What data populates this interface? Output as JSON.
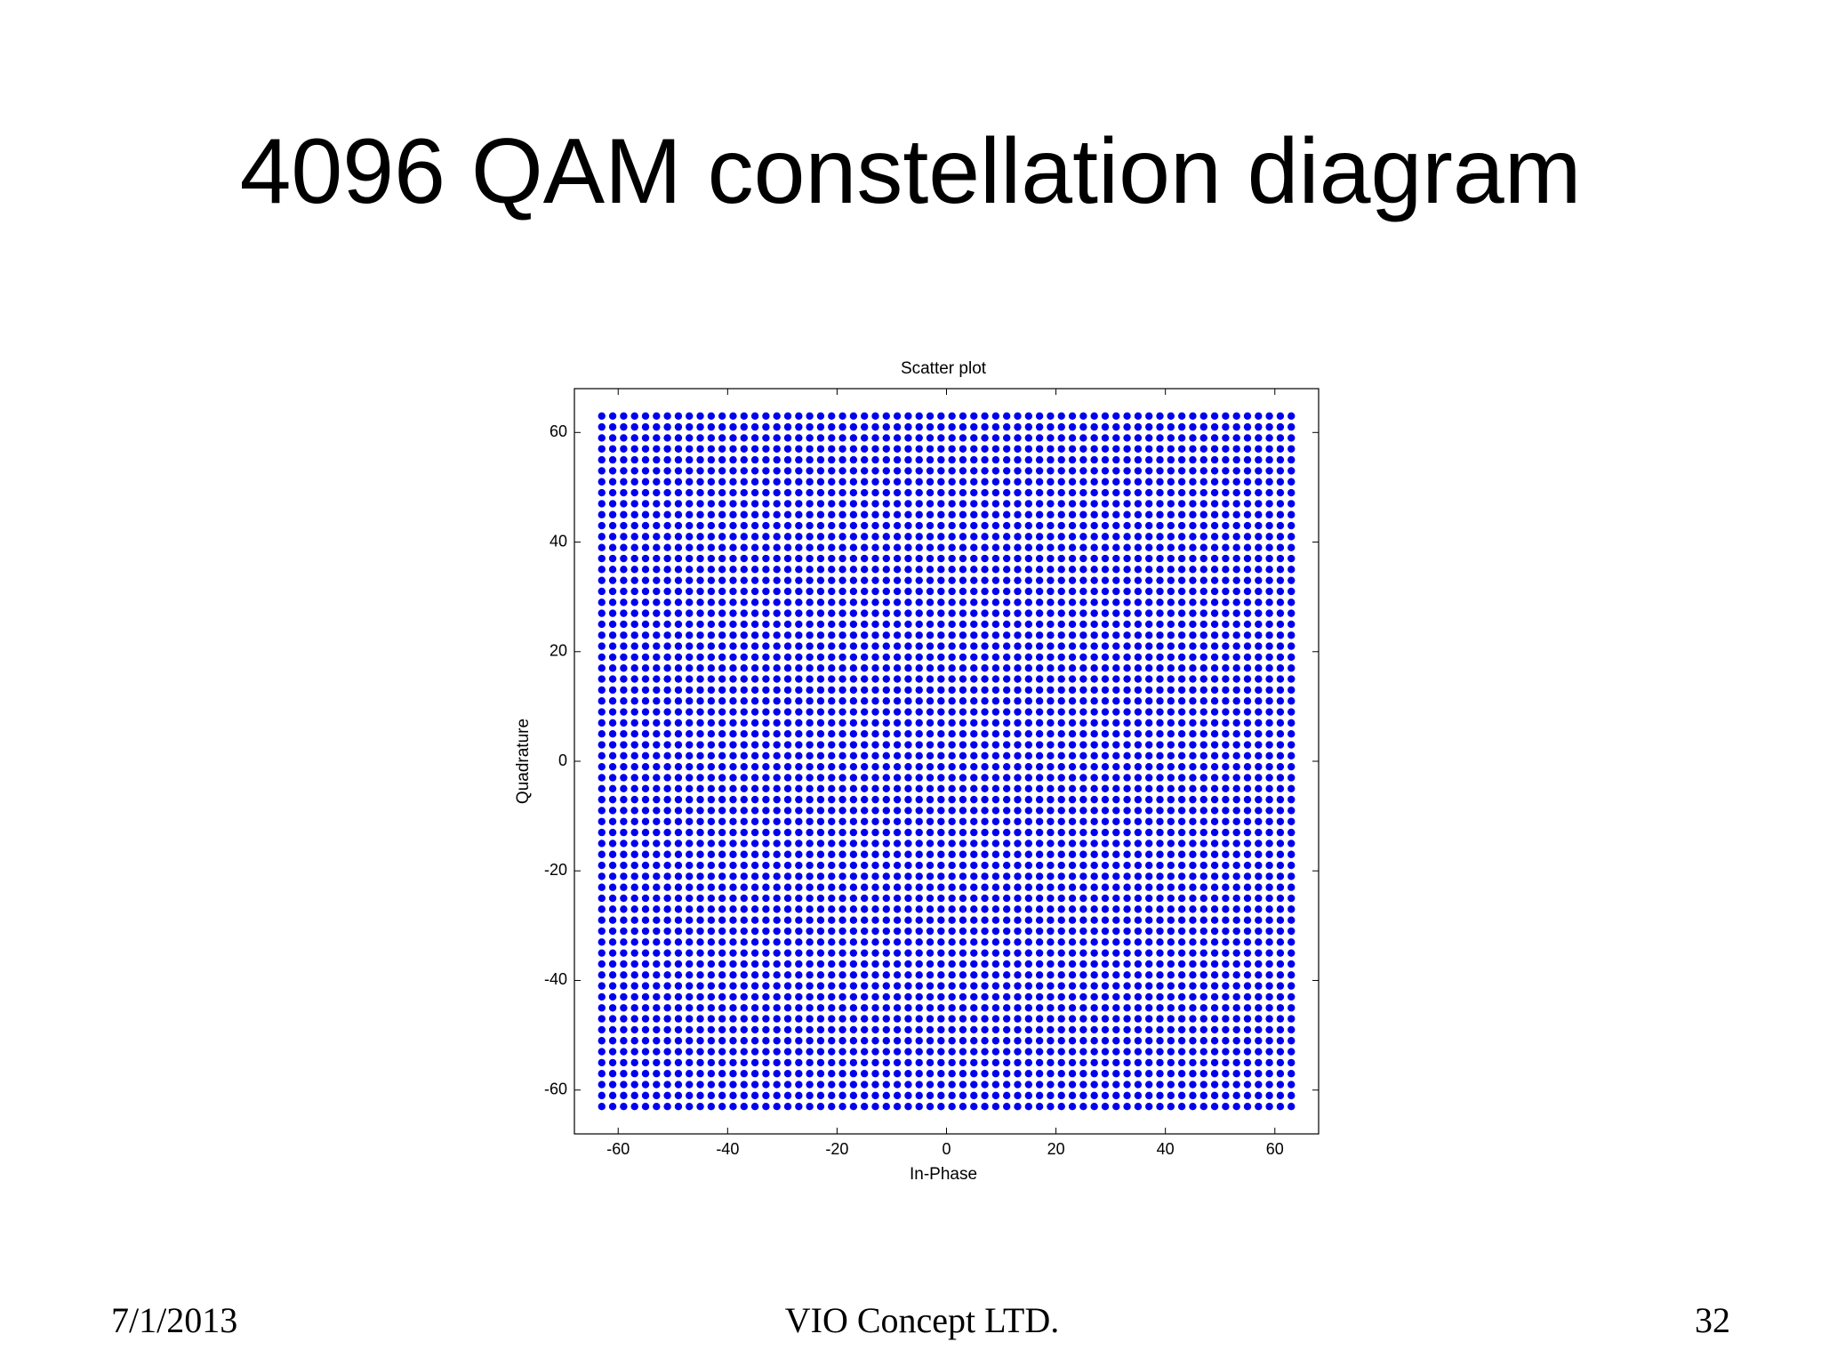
{
  "slide": {
    "title": "4096 QAM constellation diagram",
    "footer": {
      "date": "7/1/2013",
      "company": "VIO Concept LTD.",
      "page": "32"
    }
  },
  "chart_data": {
    "type": "scatter",
    "title": "Scatter plot",
    "x_label": "In-Phase",
    "y_label": "Quadrature",
    "color": "#0000ee",
    "grid": false,
    "x": [
      -63,
      -61,
      -59,
      -57,
      -55,
      -53,
      -51,
      -49,
      -47,
      -45,
      -43,
      -41,
      -39,
      -37,
      -35,
      -33,
      -31,
      -29,
      -27,
      -25,
      -23,
      -21,
      -19,
      -17,
      -15,
      -13,
      -11,
      -9,
      -7,
      -5,
      -3,
      -1,
      1,
      3,
      5,
      7,
      9,
      11,
      13,
      15,
      17,
      19,
      21,
      23,
      25,
      27,
      29,
      31,
      33,
      35,
      37,
      39,
      41,
      43,
      45,
      47,
      49,
      51,
      53,
      55,
      57,
      59,
      61,
      63
    ],
    "y": [
      -63,
      -61,
      -59,
      -57,
      -55,
      -53,
      -51,
      -49,
      -47,
      -45,
      -43,
      -41,
      -39,
      -37,
      -35,
      -33,
      -31,
      -29,
      -27,
      -25,
      -23,
      -21,
      -19,
      -17,
      -15,
      -13,
      -11,
      -9,
      -7,
      -5,
      -3,
      -1,
      1,
      3,
      5,
      7,
      9,
      11,
      13,
      15,
      17,
      19,
      21,
      23,
      25,
      27,
      29,
      31,
      33,
      35,
      37,
      39,
      41,
      43,
      45,
      47,
      49,
      51,
      53,
      55,
      57,
      59,
      61,
      63
    ],
    "xlim": [
      -68,
      68
    ],
    "ylim": [
      -68,
      68
    ],
    "xticks": [
      -60,
      -40,
      -20,
      0,
      20,
      40,
      60
    ],
    "yticks": [
      -60,
      -40,
      -20,
      0,
      20,
      40,
      60
    ]
  }
}
